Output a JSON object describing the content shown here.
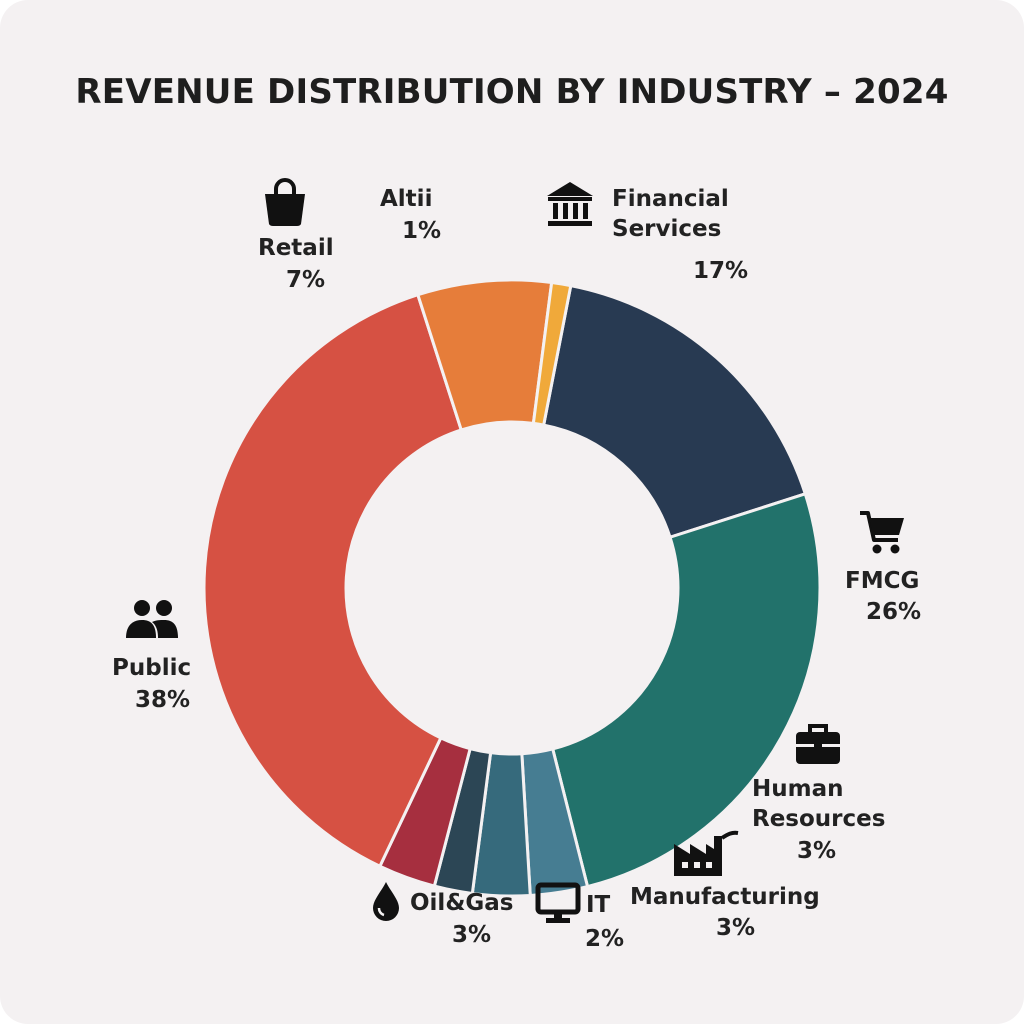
{
  "chart_data": {
    "type": "pie",
    "title": "REVENUE DISTRIBUTION BY INDUSTRY – 2024",
    "categories": [
      "Financial Services",
      "FMCG",
      "Human Resources",
      "Manufacturing",
      "IT",
      "Oil&Gas",
      "Public",
      "Retail",
      "Altii"
    ],
    "values": [
      17,
      26,
      3,
      3,
      2,
      3,
      38,
      7,
      1
    ],
    "value_labels": [
      "17%",
      "26%",
      "3%",
      "3%",
      "2%",
      "3%",
      "38%",
      "7%",
      "1%"
    ],
    "colors": [
      "#283a52",
      "#22726b",
      "#467d92",
      "#366a7c",
      "#2c4655",
      "#a62f3f",
      "#d65143",
      "#e67d3a",
      "#f0a93a"
    ],
    "icons": [
      "bank-icon",
      "shopping-cart-icon",
      "briefcase-icon",
      "factory-icon",
      "monitor-icon",
      "droplet-icon",
      "people-icon",
      "shopping-bag-icon",
      ""
    ],
    "donut": true
  },
  "labels": {
    "financial_line1": "Financial",
    "financial_line2": "Services",
    "financial_pct": "17%",
    "fmcg": "FMCG",
    "fmcg_pct": "26%",
    "hr_line1": "Human",
    "hr_line2": "Resources",
    "hr_pct": "3%",
    "manufacturing": "Manufacturing",
    "manufacturing_pct": "3%",
    "it": "IT",
    "it_pct": "2%",
    "oilgas": "Oil&Gas",
    "oilgas_pct": "3%",
    "public": "Public",
    "public_pct": "38%",
    "retail": "Retail",
    "retail_pct": "7%",
    "altii": "Altii",
    "altii_pct": "1%"
  }
}
